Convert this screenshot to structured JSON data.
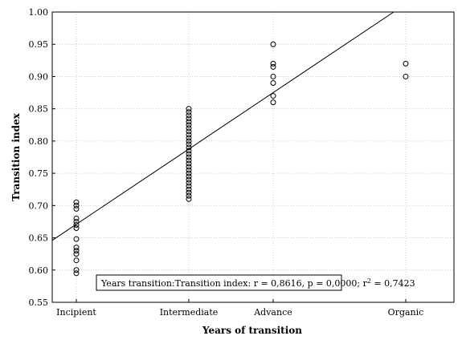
{
  "chart_data": {
    "type": "scatter",
    "x_label": "Years of transition",
    "y_label": "Transition index",
    "xlim": [
      0,
      50
    ],
    "xticks": [
      {
        "value": 3,
        "label": "Incipient"
      },
      {
        "value": 17,
        "label": "Intermediate"
      },
      {
        "value": 27.5,
        "label": "Advance"
      },
      {
        "value": 44,
        "label": "Organic"
      }
    ],
    "ylim": [
      0.55,
      1.0
    ],
    "yticks": [
      {
        "value": 0.55,
        "label": "0.55"
      },
      {
        "value": 0.6,
        "label": "0.60"
      },
      {
        "value": 0.65,
        "label": "0.65"
      },
      {
        "value": 0.7,
        "label": "0.70"
      },
      {
        "value": 0.75,
        "label": "0.75"
      },
      {
        "value": 0.8,
        "label": "0.80"
      },
      {
        "value": 0.85,
        "label": "0.85"
      },
      {
        "value": 0.9,
        "label": "0.90"
      },
      {
        "value": 0.95,
        "label": "0.95"
      },
      {
        "value": 1.0,
        "label": "1.00"
      }
    ],
    "grid": true,
    "color": "#000000",
    "series": [
      {
        "x": [
          3,
          3,
          3,
          3,
          3,
          3,
          3,
          3,
          3,
          3,
          3,
          3,
          3,
          3,
          17,
          17,
          17,
          17,
          17,
          17,
          17,
          17,
          17,
          17,
          17,
          17,
          17,
          17,
          17,
          17,
          17,
          17,
          17,
          17,
          17,
          17,
          17,
          17,
          17,
          17,
          17,
          17,
          17,
          27.5,
          27.5,
          27.5,
          27.5,
          27.5,
          27.5,
          27.5,
          44,
          44
        ],
        "values": [
          0.705,
          0.7,
          0.695,
          0.68,
          0.675,
          0.67,
          0.665,
          0.648,
          0.635,
          0.63,
          0.625,
          0.615,
          0.6,
          0.595,
          0.85,
          0.845,
          0.84,
          0.835,
          0.83,
          0.825,
          0.82,
          0.815,
          0.81,
          0.805,
          0.8,
          0.795,
          0.79,
          0.785,
          0.78,
          0.775,
          0.77,
          0.765,
          0.76,
          0.755,
          0.75,
          0.745,
          0.74,
          0.735,
          0.73,
          0.725,
          0.72,
          0.715,
          0.71,
          0.95,
          0.92,
          0.915,
          0.9,
          0.89,
          0.87,
          0.86,
          0.92,
          0.9
        ]
      }
    ],
    "fit": {
      "x": [
        0,
        42.5
      ],
      "values": [
        0.646,
        1.0
      ]
    },
    "annotation": [
      "Years transition:Transition index: r = 0,8616, p = 0,0000; r",
      "2",
      " = 0,7423"
    ]
  }
}
